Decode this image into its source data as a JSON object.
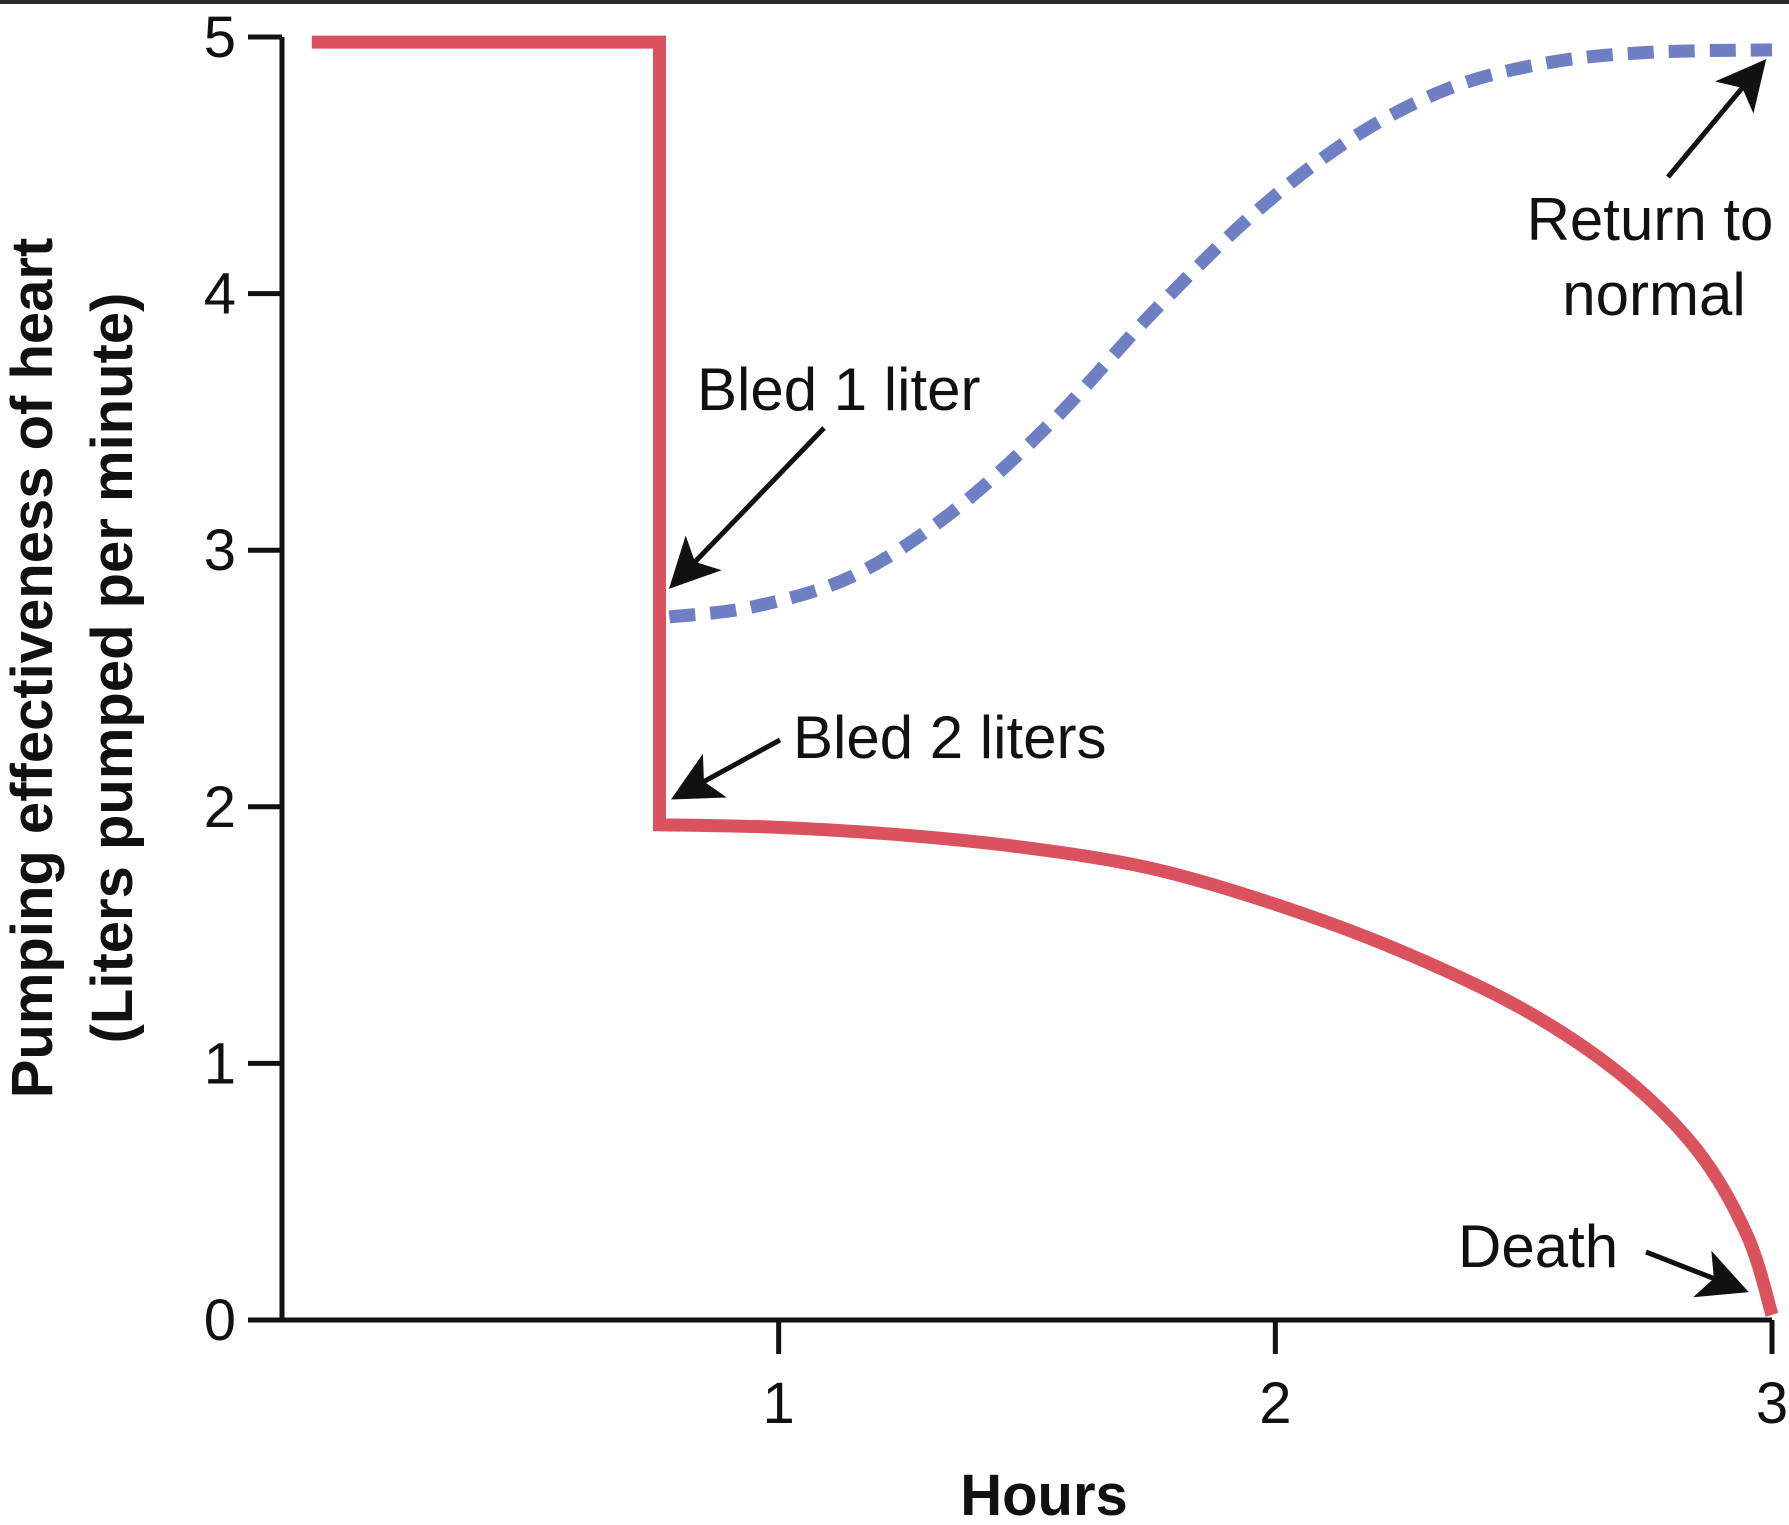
{
  "chart_data": {
    "type": "line",
    "xlabel": "Hours",
    "ylabel": [
      "Pumping effectiveness of heart",
      "(Liters pumped per minute)"
    ],
    "xlim": [
      0,
      3
    ],
    "ylim": [
      0,
      5
    ],
    "x_ticks": [
      1,
      2,
      3
    ],
    "y_ticks": [
      0,
      1,
      2,
      3,
      4,
      5
    ],
    "grid": false,
    "series": [
      {
        "style": "solid",
        "color": "#d9525e",
        "points": [
          [
            0.06,
            4.98
          ],
          [
            0.76,
            4.98
          ],
          [
            0.76,
            1.93
          ],
          [
            1.0,
            1.92
          ],
          [
            1.25,
            1.89
          ],
          [
            1.5,
            1.84
          ],
          [
            1.75,
            1.76
          ],
          [
            2.0,
            1.62
          ],
          [
            2.25,
            1.44
          ],
          [
            2.5,
            1.21
          ],
          [
            2.7,
            0.95
          ],
          [
            2.85,
            0.66
          ],
          [
            2.95,
            0.33
          ],
          [
            3.0,
            0.02
          ]
        ]
      },
      {
        "style": "dashed",
        "color": "#6e7fc4",
        "points": [
          [
            0.78,
            2.74
          ],
          [
            0.95,
            2.78
          ],
          [
            1.15,
            2.9
          ],
          [
            1.35,
            3.15
          ],
          [
            1.55,
            3.5
          ],
          [
            1.75,
            3.92
          ],
          [
            1.95,
            4.3
          ],
          [
            2.15,
            4.6
          ],
          [
            2.35,
            4.8
          ],
          [
            2.55,
            4.9
          ],
          [
            2.75,
            4.94
          ],
          [
            3.0,
            4.95
          ]
        ]
      }
    ],
    "annotations": [
      {
        "text": "Bled 1 liter",
        "x": 0.77,
        "y": 2.84,
        "lines": [
          "Bled 1 liter"
        ]
      },
      {
        "text": "Bled 2 liters",
        "x": 0.78,
        "y": 2.03,
        "lines": [
          "Bled 2 liters"
        ]
      },
      {
        "text": "Return to normal",
        "x": 2.99,
        "y": 4.93,
        "lines": [
          "Return to",
          "normal"
        ]
      },
      {
        "text": "Death",
        "x": 2.96,
        "y": 0.1,
        "lines": [
          "Death"
        ]
      }
    ]
  },
  "colors": {
    "background": "#ffffff",
    "frame": "#2b2b2b",
    "axis": "#111111",
    "series_solid": "#d9525e",
    "series_dashed": "#6e7fc4"
  }
}
